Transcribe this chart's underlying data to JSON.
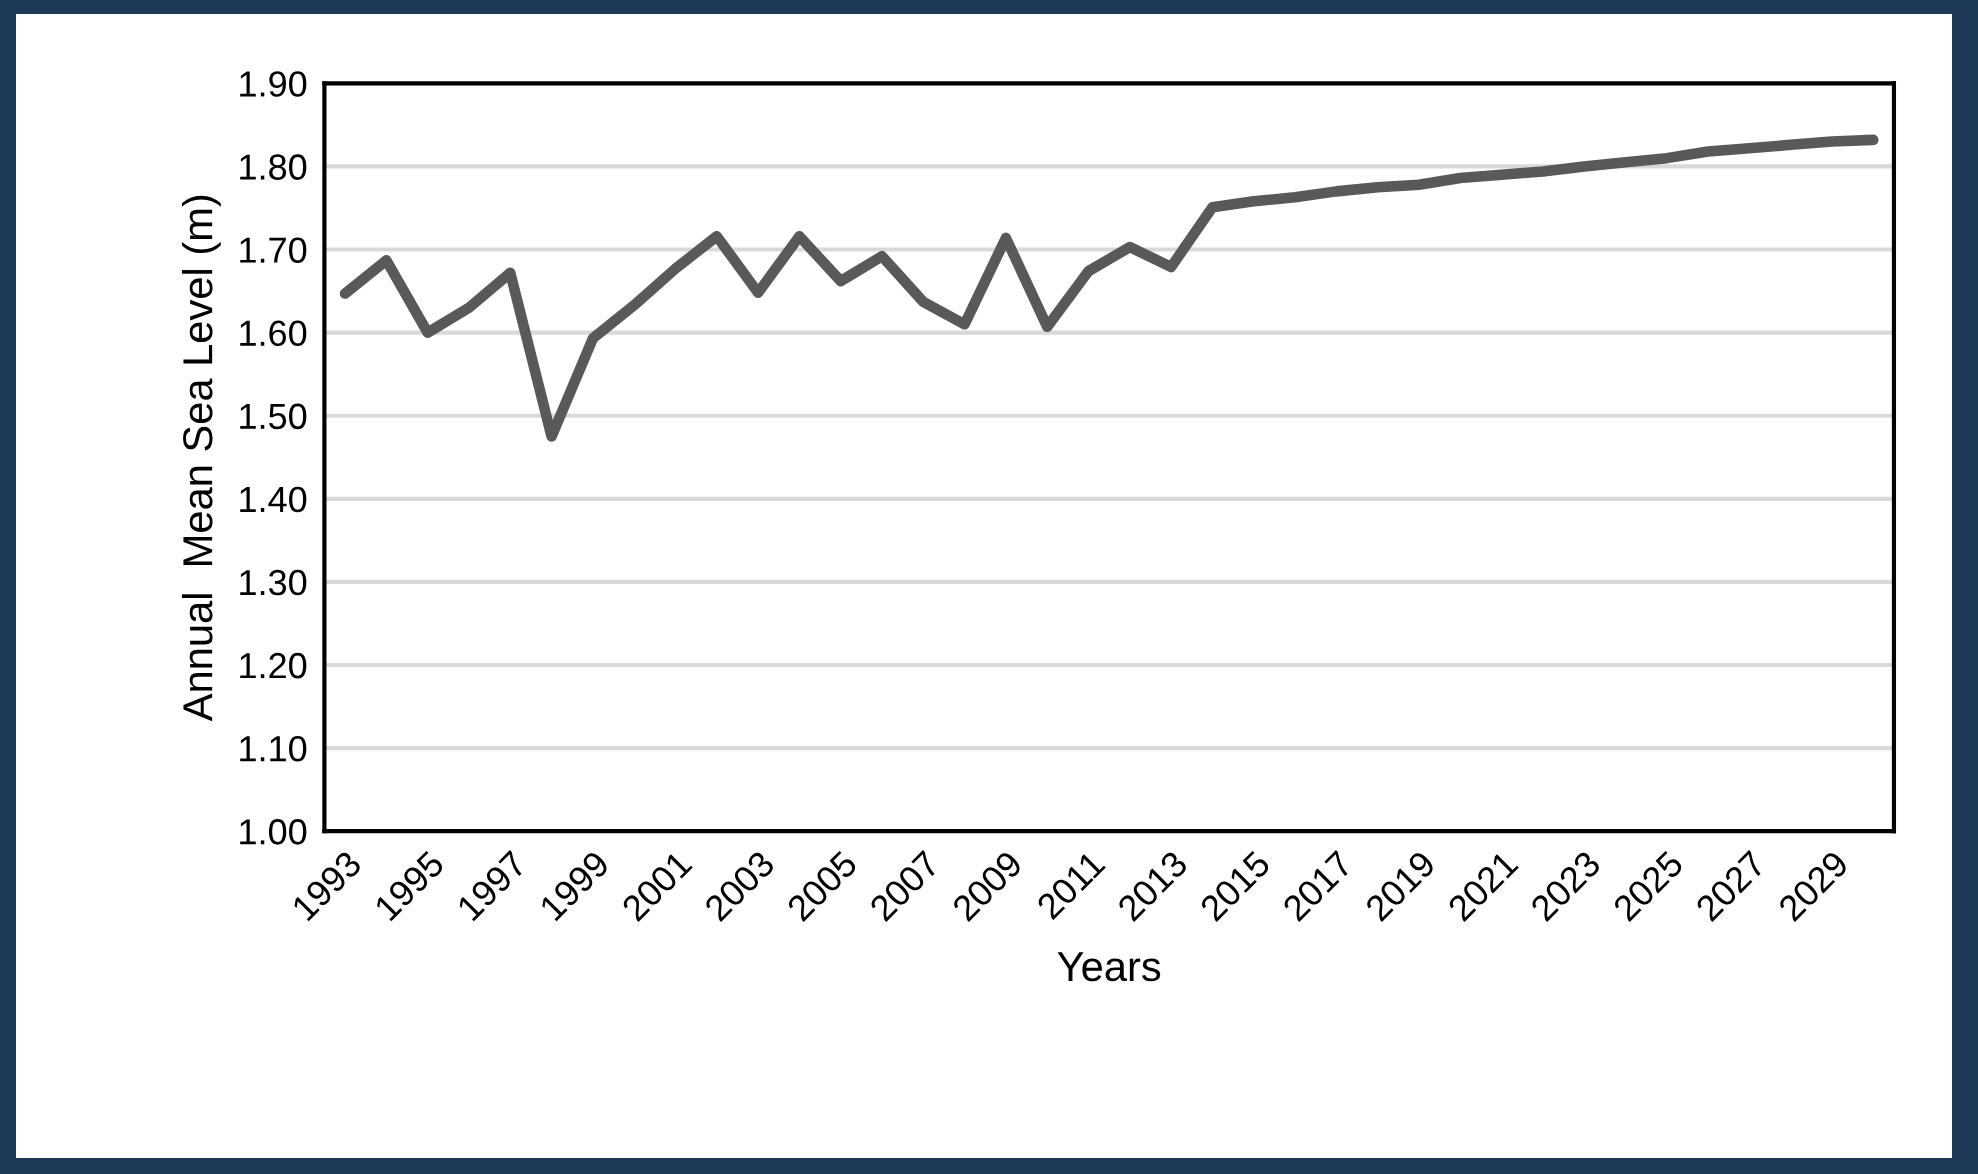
{
  "chart_data": {
    "type": "line",
    "xlabel": "Years",
    "ylabel": "Annual  Mean Sea Level (m)",
    "categories": [
      "1993",
      null,
      "1995",
      null,
      "1997",
      null,
      "1999",
      null,
      "2001",
      null,
      "2003",
      null,
      "2005",
      null,
      "2007",
      null,
      "2009",
      null,
      "2011",
      null,
      "2013",
      null,
      "2015",
      null,
      "2017",
      null,
      "2019",
      null,
      "2021",
      null,
      "2023",
      null,
      "2025",
      null,
      "2027",
      null,
      "2029",
      null
    ],
    "series": [
      {
        "color": "#595959",
        "values": [
          1.647,
          1.687,
          1.6,
          1.63,
          1.672,
          1.475,
          1.593,
          1.633,
          1.677,
          1.716,
          1.648,
          1.716,
          1.662,
          1.692,
          1.637,
          1.61,
          1.714,
          1.607,
          1.674,
          1.703,
          1.679,
          1.751,
          1.758,
          1.763,
          1.77,
          1.775,
          1.778,
          1.786,
          1.79,
          1.794,
          1.8,
          1.805,
          1.81,
          1.818,
          1.822,
          1.826,
          1.83,
          1.832
        ]
      }
    ],
    "ylim": [
      1.0,
      1.9
    ],
    "yticks": [
      {
        "value": 1.0,
        "label": "1.00"
      },
      {
        "value": 1.1,
        "label": "1.10"
      },
      {
        "value": 1.2,
        "label": "1.20"
      },
      {
        "value": 1.3,
        "label": "1.30"
      },
      {
        "value": 1.4,
        "label": "1.40"
      },
      {
        "value": 1.5,
        "label": "1.50"
      },
      {
        "value": 1.6,
        "label": "1.60"
      },
      {
        "value": 1.7,
        "label": "1.70"
      },
      {
        "value": 1.8,
        "label": "1.80"
      },
      {
        "value": 1.9,
        "label": "1.90"
      }
    ],
    "grid": "y",
    "marker": "none",
    "line_style": "solid"
  }
}
